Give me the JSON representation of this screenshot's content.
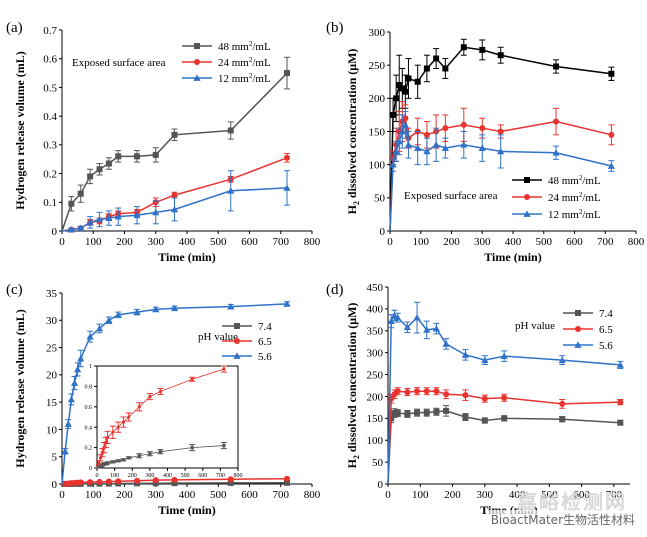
{
  "watermark": "BioactMater生物活性材料",
  "watermark_bg": "嘉峪检测网",
  "colors": {
    "black": "#000000",
    "gray": "#555555",
    "red": "#e8332f",
    "blue": "#2f72c8"
  },
  "chart_data": [
    {
      "panel": "(a)",
      "type": "line",
      "title": "",
      "xlabel": "Time (min)",
      "ylabel": "Hydrogen release volume (mL)",
      "xlim": [
        0,
        800
      ],
      "ylim": [
        0,
        0.7
      ],
      "xticks": [
        0,
        100,
        200,
        300,
        400,
        500,
        600,
        700,
        800
      ],
      "yticks": [
        0,
        0.1,
        0.2,
        0.3,
        0.4,
        0.5,
        0.6,
        0.7
      ],
      "legend_title": "Exposed surface area",
      "legend_pos": "top-right",
      "series": [
        {
          "name": "48 mm²/mL",
          "color": "#555555",
          "marker": "square",
          "x": [
            0,
            30,
            60,
            90,
            120,
            150,
            180,
            240,
            300,
            360,
            540,
            720
          ],
          "y": [
            0,
            0.095,
            0.13,
            0.19,
            0.215,
            0.235,
            0.26,
            0.26,
            0.265,
            0.335,
            0.35,
            0.55
          ],
          "err": [
            0,
            0.025,
            0.03,
            0.025,
            0.02,
            0.02,
            0.02,
            0.02,
            0.025,
            0.02,
            0.03,
            0.055
          ]
        },
        {
          "name": "24 mm²/mL",
          "color": "#e8332f",
          "marker": "circle",
          "x": [
            0,
            30,
            60,
            90,
            120,
            150,
            180,
            240,
            300,
            360,
            540,
            720
          ],
          "y": [
            0,
            0.005,
            0.01,
            0.03,
            0.035,
            0.05,
            0.06,
            0.065,
            0.1,
            0.125,
            0.18,
            0.255
          ],
          "err": [
            0,
            0.005,
            0.005,
            0.01,
            0.01,
            0.01,
            0.01,
            0.01,
            0.015,
            0.01,
            0.01,
            0.015
          ]
        },
        {
          "name": "12 mm²/mL",
          "color": "#2f72c8",
          "marker": "triangle",
          "x": [
            0,
            30,
            60,
            90,
            120,
            150,
            180,
            240,
            300,
            360,
            540,
            720
          ],
          "y": [
            0,
            0.005,
            0.01,
            0.03,
            0.04,
            0.045,
            0.05,
            0.055,
            0.065,
            0.075,
            0.14,
            0.15
          ],
          "err": [
            0,
            0.005,
            0.005,
            0.02,
            0.025,
            0.025,
            0.03,
            0.03,
            0.04,
            0.04,
            0.07,
            0.06
          ]
        }
      ]
    },
    {
      "panel": "(b)",
      "type": "line",
      "title": "",
      "xlabel": "Time (min)",
      "ylabel": "H2 dissolved concentration (μM)",
      "xlim": [
        0,
        800
      ],
      "ylim": [
        0,
        300
      ],
      "xticks": [
        0,
        100,
        200,
        300,
        400,
        500,
        600,
        700,
        800
      ],
      "yticks": [
        0,
        50,
        100,
        150,
        200,
        250,
        300
      ],
      "legend_title": "Exposed surface area",
      "legend_pos": "bottom-right",
      "series": [
        {
          "name": "48 mm²/mL",
          "color": "#000000",
          "marker": "square",
          "x": [
            0,
            10,
            20,
            30,
            40,
            50,
            60,
            90,
            120,
            150,
            180,
            240,
            300,
            360,
            540,
            720
          ],
          "y": [
            0,
            175,
            200,
            220,
            215,
            210,
            230,
            225,
            245,
            260,
            245,
            277,
            273,
            265,
            248,
            237
          ],
          "err": [
            0,
            25,
            35,
            45,
            30,
            25,
            30,
            25,
            20,
            15,
            15,
            12,
            15,
            12,
            10,
            10
          ]
        },
        {
          "name": "24 mm²/mL",
          "color": "#e8332f",
          "marker": "circle",
          "x": [
            0,
            10,
            20,
            30,
            40,
            50,
            60,
            90,
            120,
            150,
            180,
            240,
            300,
            360,
            540,
            720
          ],
          "y": [
            0,
            110,
            130,
            150,
            165,
            170,
            140,
            150,
            145,
            150,
            155,
            160,
            155,
            150,
            165,
            145
          ],
          "err": [
            0,
            10,
            25,
            30,
            30,
            20,
            15,
            20,
            20,
            25,
            20,
            25,
            15,
            10,
            20,
            15
          ]
        },
        {
          "name": "12 mm²/mL",
          "color": "#2f72c8",
          "marker": "triangle",
          "x": [
            0,
            10,
            20,
            30,
            40,
            50,
            60,
            90,
            120,
            150,
            180,
            240,
            300,
            360,
            540,
            720
          ],
          "y": [
            0,
            100,
            120,
            135,
            150,
            160,
            130,
            125,
            120,
            130,
            125,
            130,
            125,
            120,
            118,
            98
          ],
          "err": [
            0,
            10,
            15,
            20,
            25,
            20,
            20,
            25,
            20,
            25,
            15,
            20,
            20,
            25,
            10,
            8
          ]
        }
      ]
    },
    {
      "panel": "(c)",
      "type": "line",
      "title": "",
      "xlabel": "Time (min)",
      "ylabel": "Hydrogen release volume (mL)",
      "xlim": [
        0,
        800
      ],
      "ylim": [
        0,
        35
      ],
      "xticks": [
        0,
        100,
        200,
        300,
        400,
        500,
        600,
        700,
        800
      ],
      "yticks": [
        0,
        5,
        10,
        15,
        20,
        25,
        30,
        35
      ],
      "legend_title": "pH value",
      "legend_pos": "top-right",
      "series": [
        {
          "name": "7.4",
          "color": "#555555",
          "marker": "square",
          "x": [
            0,
            10,
            20,
            30,
            40,
            50,
            60,
            90,
            120,
            150,
            180,
            240,
            300,
            360,
            540,
            720
          ],
          "y": [
            0,
            0.01,
            0.02,
            0.03,
            0.04,
            0.04,
            0.05,
            0.06,
            0.07,
            0.08,
            0.1,
            0.12,
            0.14,
            0.16,
            0.2,
            0.22
          ],
          "err": [
            0,
            0,
            0,
            0,
            0,
            0,
            0,
            0,
            0,
            0,
            0,
            0,
            0,
            0,
            0,
            0
          ]
        },
        {
          "name": "6.5",
          "color": "#e8332f",
          "marker": "circle",
          "x": [
            0,
            10,
            20,
            30,
            40,
            50,
            60,
            90,
            120,
            150,
            180,
            240,
            300,
            360,
            540,
            720
          ],
          "y": [
            0,
            0.05,
            0.1,
            0.15,
            0.2,
            0.25,
            0.3,
            0.35,
            0.4,
            0.45,
            0.5,
            0.6,
            0.7,
            0.75,
            0.87,
            0.97
          ],
          "err": [
            0,
            0,
            0,
            0,
            0,
            0,
            0,
            0,
            0,
            0,
            0,
            0,
            0,
            0,
            0,
            0
          ]
        },
        {
          "name": "5.6",
          "color": "#2f72c8",
          "marker": "triangle",
          "x": [
            0,
            10,
            20,
            30,
            40,
            50,
            60,
            90,
            120,
            150,
            180,
            240,
            300,
            360,
            540,
            720
          ],
          "y": [
            0,
            6,
            11,
            15.5,
            18.5,
            21,
            23,
            27,
            28.5,
            30,
            31,
            31.5,
            32,
            32.2,
            32.5,
            33
          ],
          "err": [
            0,
            0.5,
            0.8,
            1,
            1.2,
            1.2,
            1.5,
            1,
            0.8,
            0.6,
            0.5,
            0.5,
            0.4,
            0.4,
            0.4,
            0.4
          ]
        }
      ],
      "inset": {
        "xlim": [
          0,
          800
        ],
        "ylim": [
          0,
          1.0
        ],
        "xticks": [
          0,
          100,
          200,
          300,
          400,
          500,
          600,
          700,
          800
        ],
        "yticks": [
          0,
          0.2,
          0.4,
          0.6,
          0.8,
          1.0
        ],
        "ytick_labels": [
          "0",
          "0.2",
          "0.4",
          "0.6",
          "0.8",
          "1"
        ],
        "series_ref": [
          0,
          1
        ],
        "err": [
          [
            0,
            0.01,
            0.01,
            0.01,
            0.01,
            0.01,
            0.01,
            0.01,
            0.01,
            0.01,
            0.01,
            0.02,
            0.02,
            0.02,
            0.03,
            0.03
          ],
          [
            0,
            0.02,
            0.03,
            0.04,
            0.05,
            0.05,
            0.06,
            0.06,
            0.05,
            0.05,
            0.04,
            0.04,
            0.03,
            0.03,
            0.02,
            0.03
          ]
        ]
      }
    },
    {
      "panel": "(d)",
      "type": "line",
      "title": "",
      "xlabel": "Time (min)",
      "ylabel": "H2 dissolved concentration (μM)",
      "xlim": [
        0,
        750
      ],
      "ylim": [
        0,
        450
      ],
      "xticks": [
        0,
        100,
        200,
        300,
        400,
        500,
        600,
        700
      ],
      "yticks": [
        0,
        50,
        100,
        150,
        200,
        250,
        300,
        350,
        400,
        450
      ],
      "legend_title": "pH value",
      "legend_pos": "top-right",
      "series": [
        {
          "name": "7.4",
          "color": "#555555",
          "marker": "square",
          "x": [
            0,
            10,
            20,
            30,
            60,
            90,
            120,
            150,
            180,
            240,
            300,
            360,
            540,
            720
          ],
          "y": [
            0,
            150,
            162,
            162,
            160,
            163,
            163,
            165,
            167,
            153,
            145,
            150,
            148,
            140
          ],
          "err": [
            0,
            10,
            10,
            8,
            8,
            8,
            8,
            8,
            12,
            8,
            6,
            6,
            6,
            5
          ]
        },
        {
          "name": "6.5",
          "color": "#e8332f",
          "marker": "circle",
          "x": [
            0,
            10,
            20,
            30,
            60,
            90,
            120,
            150,
            180,
            240,
            300,
            360,
            540,
            720
          ],
          "y": [
            0,
            195,
            205,
            212,
            210,
            212,
            212,
            212,
            205,
            203,
            195,
            197,
            183,
            187
          ],
          "err": [
            0,
            10,
            10,
            8,
            8,
            8,
            8,
            8,
            10,
            12,
            8,
            8,
            10,
            6
          ]
        },
        {
          "name": "5.6",
          "color": "#2f72c8",
          "marker": "triangle",
          "x": [
            0,
            10,
            20,
            30,
            60,
            90,
            120,
            150,
            180,
            240,
            300,
            360,
            540,
            720
          ],
          "y": [
            0,
            372,
            385,
            380,
            358,
            380,
            352,
            355,
            320,
            295,
            283,
            292,
            283,
            272
          ],
          "err": [
            0,
            15,
            12,
            10,
            12,
            35,
            20,
            12,
            12,
            12,
            10,
            12,
            10,
            8
          ]
        }
      ]
    }
  ]
}
